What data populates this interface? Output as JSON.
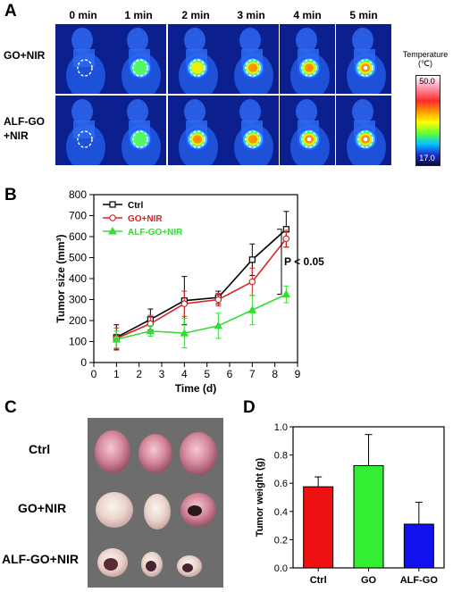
{
  "panels": {
    "a": "A",
    "b": "B",
    "c": "C",
    "d": "D"
  },
  "panel_a": {
    "times": [
      "0 min",
      "1 min",
      "2 min",
      "3 min",
      "4 min",
      "5 min"
    ],
    "rows": [
      {
        "label": "GO+NIR"
      },
      {
        "label_line1": "ALF-GO",
        "label_line2": "+NIR"
      }
    ],
    "hotspot_intensity": [
      [
        0.05,
        0.45,
        0.65,
        0.8,
        0.88,
        0.95
      ],
      [
        0.05,
        0.5,
        0.75,
        0.9,
        0.96,
        1.0
      ]
    ],
    "colorbar": {
      "title_line1": "Temperature",
      "title_line2": "(℃)",
      "max": "50.0",
      "min": "17.0"
    }
  },
  "panel_c": {
    "labels": [
      "Ctrl",
      "GO+NIR",
      "ALF-GO+NIR"
    ]
  },
  "chart_data": [
    {
      "type": "line",
      "xlabel": "Time (d)",
      "ylabel": "Tumor size (mm³)",
      "xlim": [
        0,
        9
      ],
      "ylim": [
        0,
        800
      ],
      "xticks": [
        "0",
        "1",
        "2",
        "3",
        "4",
        "5",
        "6",
        "7",
        "8",
        "9"
      ],
      "yticks": [
        "0",
        "100",
        "200",
        "300",
        "400",
        "500",
        "600",
        "700",
        "800"
      ],
      "x": [
        1,
        2.5,
        4,
        5.5,
        7,
        8.5
      ],
      "annotation": "P < 0.05",
      "legend_position": "top-left",
      "series": [
        {
          "name": "Ctrl",
          "color": "#000000",
          "marker": "square",
          "values": [
            120,
            205,
            295,
            310,
            490,
            635
          ],
          "errors": [
            60,
            50,
            115,
            30,
            75,
            85
          ]
        },
        {
          "name": "GO+NIR",
          "color": "#d62728",
          "marker": "circle",
          "values": [
            115,
            185,
            280,
            300,
            385,
            590
          ],
          "errors": [
            50,
            40,
            60,
            30,
            65,
            40
          ]
        },
        {
          "name": "ALF-GO+NIR",
          "color": "#33dd33",
          "marker": "triangle",
          "values": [
            110,
            150,
            140,
            175,
            250,
            325
          ],
          "errors": [
            40,
            25,
            70,
            60,
            70,
            40
          ]
        }
      ]
    },
    {
      "type": "bar",
      "ylabel": "Tumor weight (g)",
      "categories": [
        "Ctrl",
        "GO",
        "ALF-GO"
      ],
      "values": [
        0.575,
        0.725,
        0.31
      ],
      "errors": [
        0.07,
        0.22,
        0.155
      ],
      "colors": [
        "#ee1111",
        "#33ee33",
        "#1111ee"
      ],
      "ylim": [
        0,
        1.0
      ],
      "yticks": [
        "0.0",
        "0.2",
        "0.4",
        "0.6",
        "0.8",
        "1.0"
      ]
    }
  ]
}
